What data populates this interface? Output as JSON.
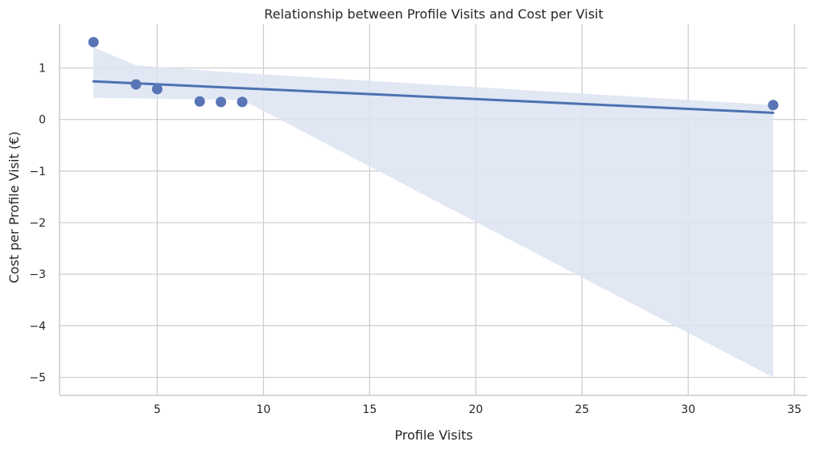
{
  "chart_data": {
    "type": "scatter",
    "title": "Relationship between Profile Visits and Cost per Visit",
    "xlabel": "Profile Visits",
    "ylabel": "Cost per Profile Visit (€)",
    "xlim": [
      0.4,
      35.6
    ],
    "ylim": [
      -5.35,
      1.85
    ],
    "xticks": [
      5,
      10,
      15,
      20,
      25,
      30,
      35
    ],
    "yticks": [
      1,
      0,
      -1,
      -2,
      -3,
      -4,
      -5
    ],
    "ytick_labels": [
      "1",
      "0",
      "−1",
      "−2",
      "−3",
      "−4",
      "−5"
    ],
    "grid": true,
    "points": [
      {
        "x": 2,
        "y": 1.5
      },
      {
        "x": 4,
        "y": 0.68
      },
      {
        "x": 5,
        "y": 0.59
      },
      {
        "x": 7,
        "y": 0.35
      },
      {
        "x": 8,
        "y": 0.34
      },
      {
        "x": 9,
        "y": 0.34
      },
      {
        "x": 34,
        "y": 0.28
      }
    ],
    "regression_line": {
      "x": [
        2,
        34
      ],
      "y": [
        0.74,
        0.13
      ]
    },
    "confidence_band": {
      "x": [
        2,
        4,
        9,
        34
      ],
      "upper": [
        1.4,
        1.05,
        0.9,
        0.28
      ],
      "lower": [
        0.42,
        0.41,
        0.38,
        -5.0
      ]
    },
    "colors": {
      "points": "#5975b5",
      "line": "#4c72b0",
      "band": "#dce3f1",
      "grid": "#cccccc",
      "spine": "#cccccc"
    }
  }
}
